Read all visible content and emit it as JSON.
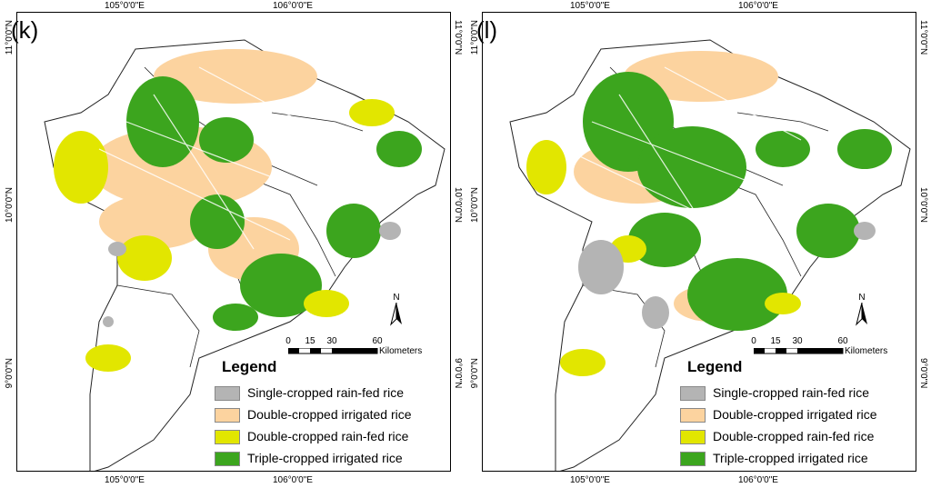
{
  "panels": [
    {
      "label": "(k)"
    },
    {
      "label": "(l)"
    }
  ],
  "axes": {
    "lon_ticks": [
      "105°0'0\"E",
      "106°0'0\"E"
    ],
    "lat_ticks": [
      "11°0'0\"N",
      "10°0'0\"N",
      "9°0'0\"N"
    ]
  },
  "north_arrow": {
    "label": "N"
  },
  "scale_bar": {
    "ticks": [
      "0",
      "15",
      "30",
      "60"
    ],
    "unit": "Kilometers"
  },
  "legend": {
    "title": "Legend",
    "items": [
      {
        "label": "Single-cropped rain-fed rice",
        "color": "#b4b4b4"
      },
      {
        "label": "Double-cropped irrigated rice",
        "color": "#fcd39f"
      },
      {
        "label": "Double-cropped rain-fed rice",
        "color": "#e2e600"
      },
      {
        "label": "Triple-cropped irrigated rice",
        "color": "#3ca51e"
      }
    ]
  }
}
